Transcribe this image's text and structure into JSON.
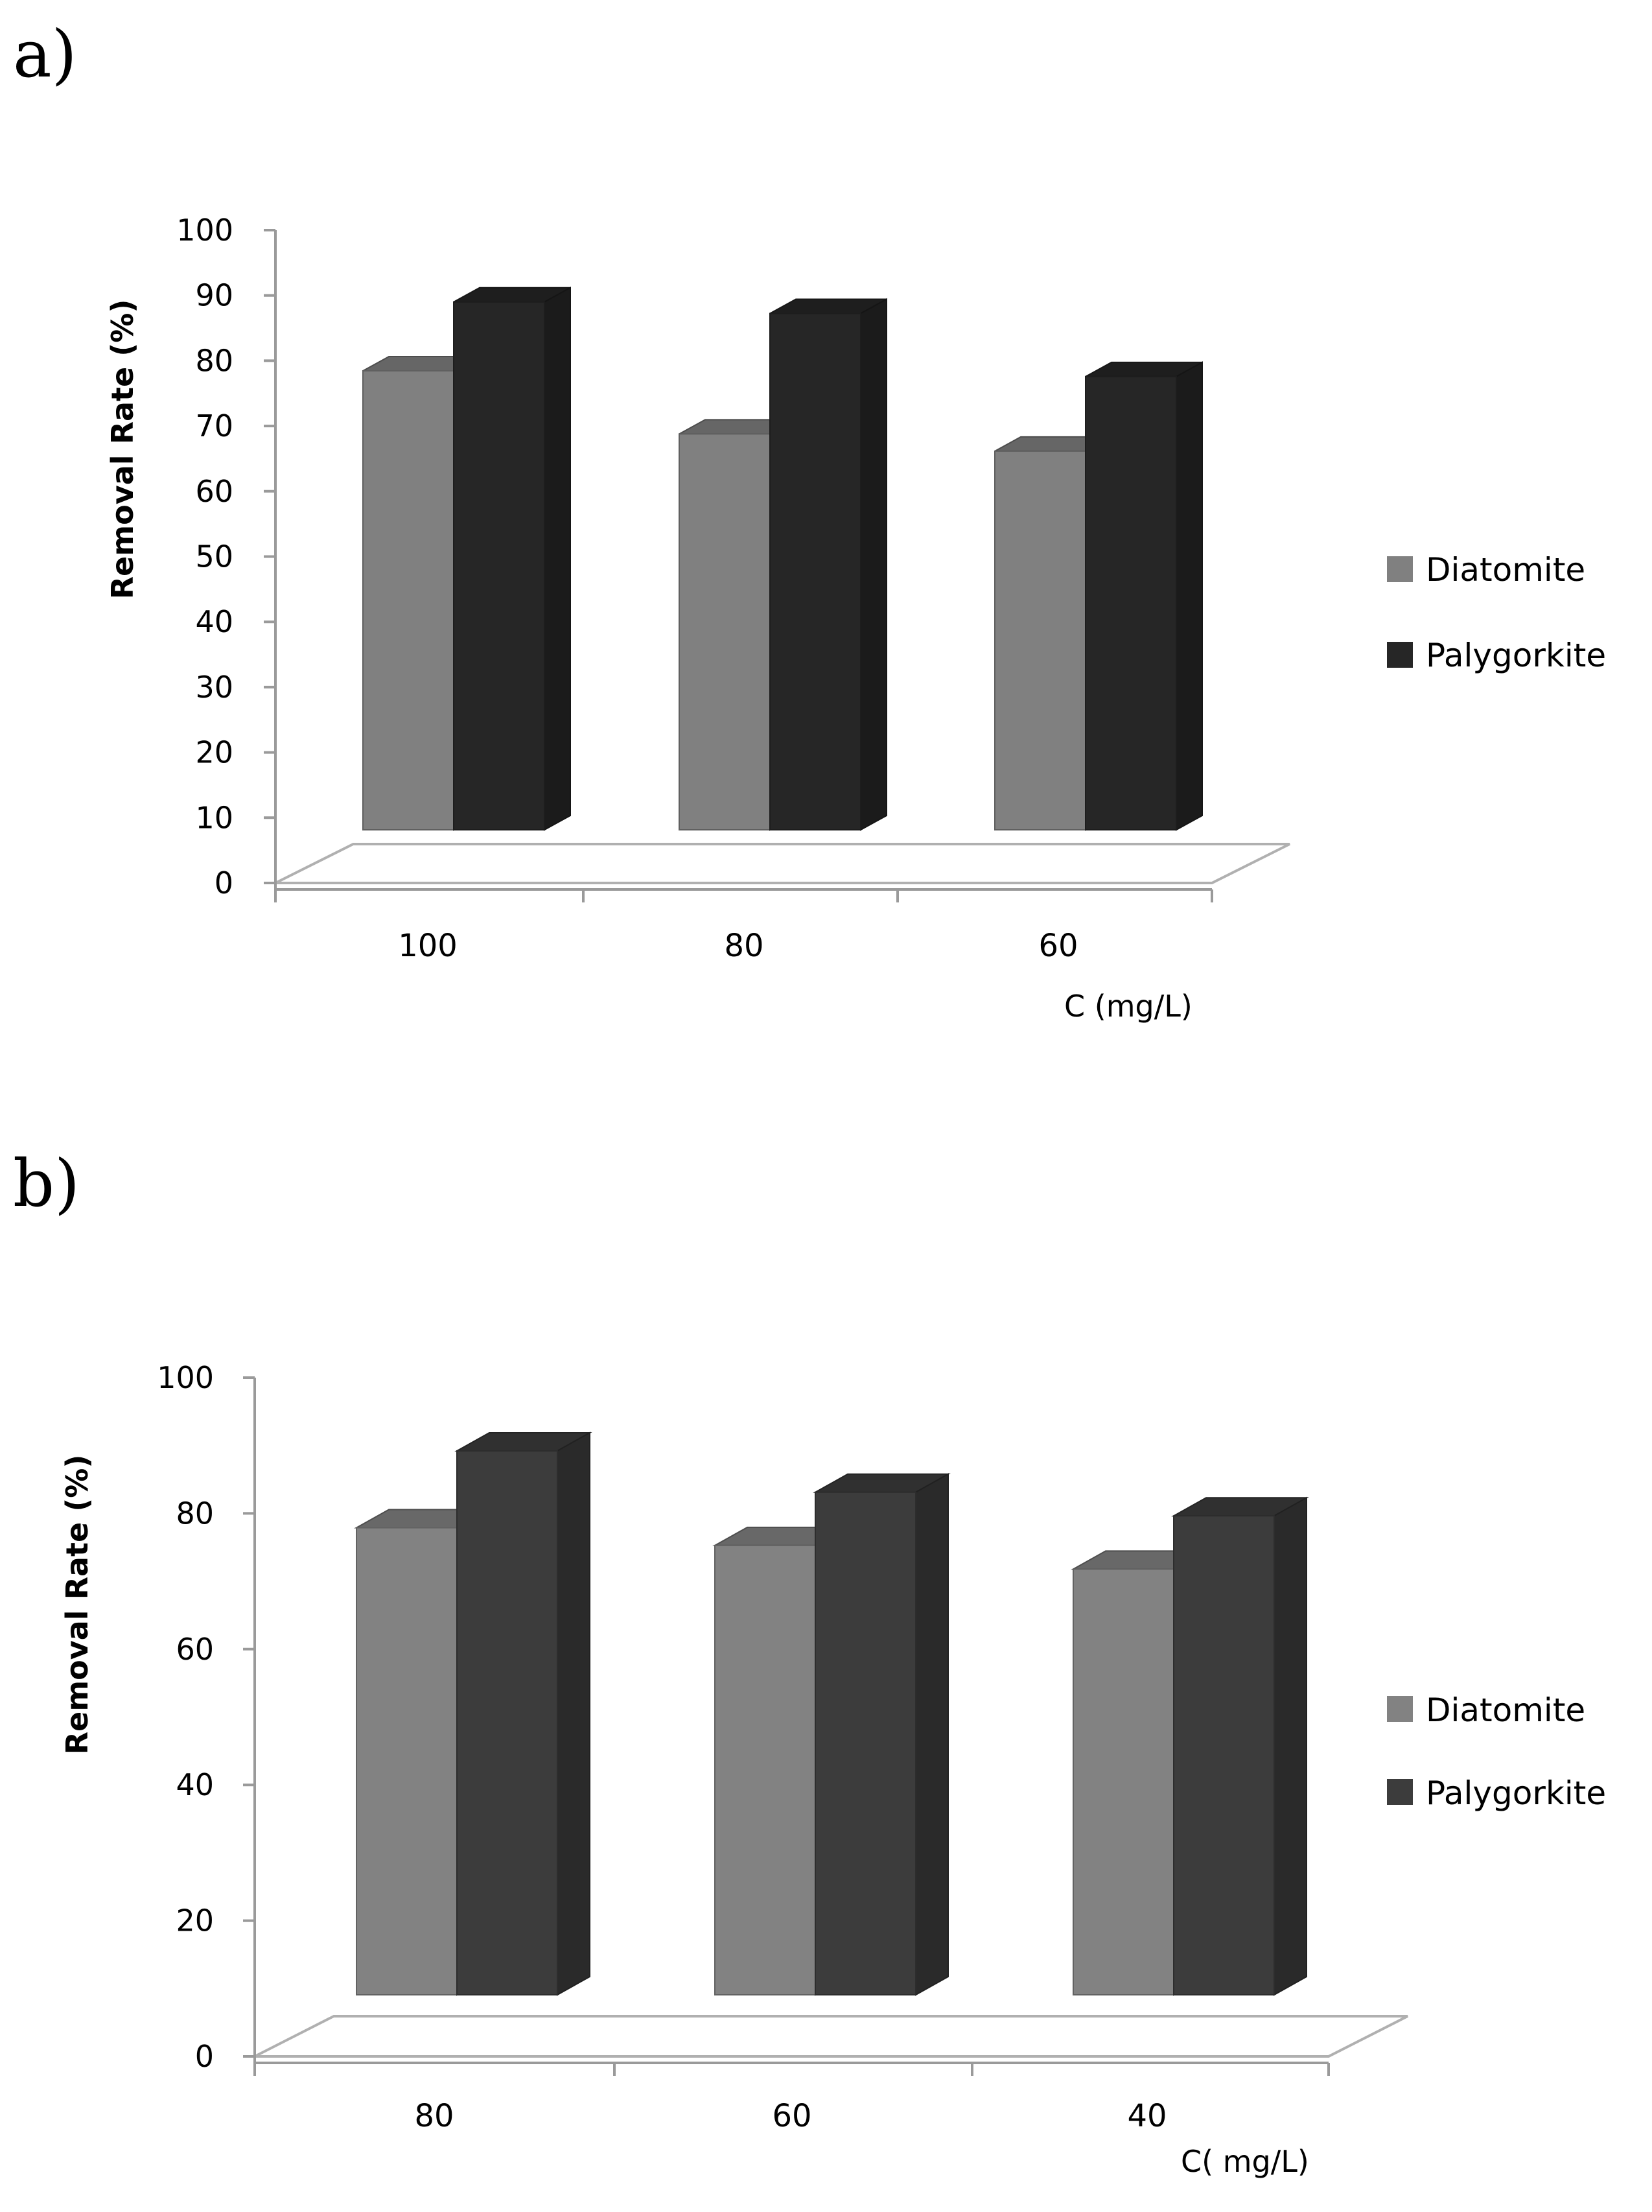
{
  "chart_data": [
    {
      "panel_label": "a)",
      "type": "bar",
      "ylabel": "Removal Rate (%)",
      "xlabel": "C (mg/L)",
      "categories": [
        "100",
        "80",
        "60"
      ],
      "ylim": [
        0,
        100
      ],
      "yticks": [
        "0",
        "10",
        "20",
        "30",
        "40",
        "50",
        "60",
        "70",
        "80",
        "90",
        "100"
      ],
      "series": [
        {
          "name": "Diatomite",
          "values": [
            80,
            69,
            66
          ],
          "color": "#808080"
        },
        {
          "name": "Palygorkite",
          "values": [
            92,
            90,
            79
          ],
          "color": "#262626"
        }
      ],
      "legend_position": "right"
    },
    {
      "panel_label": "b)",
      "type": "bar",
      "ylabel": "Removal Rate (%)",
      "xlabel": "C( mg/L)",
      "categories": [
        "80",
        "60",
        "40"
      ],
      "ylim": [
        0,
        100
      ],
      "yticks": [
        "0",
        "20",
        "40",
        "60",
        "80",
        "100"
      ],
      "series": [
        {
          "name": "Diatomite",
          "values": [
            79,
            76,
            72
          ],
          "color": "#828282"
        },
        {
          "name": "Palygorkite",
          "values": [
            92,
            85,
            81
          ],
          "color": "#3c3c3c"
        }
      ],
      "legend_position": "right"
    }
  ]
}
